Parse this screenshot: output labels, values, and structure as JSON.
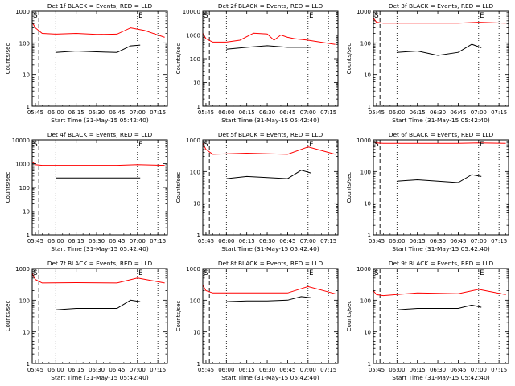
{
  "page": {
    "xlabel": "Start Time (31-May-15 05:42:40)",
    "ylabel": "Counts/sec",
    "marker_s": "S",
    "marker_e": "E"
  },
  "chart_data": [
    {
      "type": "line",
      "title": "Det 1f BLACK = Events, RED = LLD",
      "xlabel": "Start Time (31-May-15 05:42:40)",
      "ylabel": "Counts/sec",
      "log_y": true,
      "ylim": [
        1,
        1000
      ],
      "xlim": [
        "05:42:40",
        "07:22:00"
      ],
      "x_ticks": [
        "05:45",
        "06:00",
        "06:15",
        "06:30",
        "06:45",
        "07:00",
        "07:15"
      ],
      "y_ticks": [
        1,
        10,
        100,
        1000
      ],
      "y_tick_labels": [
        "1",
        "10",
        "100",
        "1000"
      ],
      "markers": {
        "S": "05:45",
        "E": "07:00"
      },
      "series": [
        {
          "color": "#ff0000",
          "x": [
            "05:42:40",
            "05:45",
            "05:50",
            "06:00",
            "06:15",
            "06:30",
            "06:45",
            "06:55",
            "07:05",
            "07:20"
          ],
          "values": [
            450,
            300,
            200,
            190,
            200,
            185,
            190,
            300,
            250,
            150
          ]
        },
        {
          "color": "#000000",
          "x": [
            "06:00",
            "06:15",
            "06:30",
            "06:45",
            "06:55",
            "07:02"
          ],
          "values": [
            50,
            55,
            52,
            50,
            80,
            85
          ]
        }
      ]
    },
    {
      "type": "line",
      "title": "Det 2f BLACK = Events, RED = LLD",
      "xlabel": "Start Time (31-May-15 05:42:40)",
      "ylabel": "Counts/sec",
      "log_y": true,
      "ylim": [
        1,
        10000
      ],
      "xlim": [
        "05:42:40",
        "07:22:00"
      ],
      "x_ticks": [
        "05:45",
        "06:00",
        "06:15",
        "06:30",
        "06:45",
        "07:00",
        "07:15"
      ],
      "y_ticks": [
        1,
        10,
        100,
        1000,
        10000
      ],
      "y_tick_labels": [
        "1",
        "10",
        "100",
        "1000",
        "10000"
      ],
      "markers": {
        "S": "05:45",
        "E": "07:00"
      },
      "series": [
        {
          "color": "#ff0000",
          "x": [
            "05:42:40",
            "05:45",
            "05:50",
            "06:00",
            "06:10",
            "06:20",
            "06:30",
            "06:35",
            "06:40",
            "06:45",
            "06:50",
            "07:00",
            "07:20"
          ],
          "values": [
            1200,
            700,
            500,
            500,
            600,
            1200,
            1100,
            600,
            1000,
            800,
            700,
            600,
            400
          ]
        },
        {
          "color": "#000000",
          "x": [
            "06:00",
            "06:15",
            "06:30",
            "06:45",
            "07:02"
          ],
          "values": [
            250,
            300,
            350,
            300,
            300
          ]
        }
      ]
    },
    {
      "type": "line",
      "title": "Det 3f BLACK = Events, RED = LLD",
      "xlabel": "Start Time (31-May-15 05:42:40)",
      "ylabel": "Counts/sec",
      "log_y": true,
      "ylim": [
        1,
        1000
      ],
      "xlim": [
        "05:42:40",
        "07:22:00"
      ],
      "x_ticks": [
        "05:45",
        "06:00",
        "06:15",
        "06:30",
        "06:45",
        "07:00",
        "07:15"
      ],
      "y_ticks": [
        1,
        10,
        100,
        1000
      ],
      "y_tick_labels": [
        "1",
        "10",
        "100",
        "1000"
      ],
      "markers": {
        "S": "05:45",
        "E": "07:00"
      },
      "series": [
        {
          "color": "#ff0000",
          "x": [
            "05:42:40",
            "05:45",
            "05:50",
            "06:15",
            "06:45",
            "07:00",
            "07:20"
          ],
          "values": [
            600,
            450,
            420,
            420,
            420,
            450,
            420
          ]
        },
        {
          "color": "#000000",
          "x": [
            "06:00",
            "06:15",
            "06:30",
            "06:45",
            "06:55",
            "07:02"
          ],
          "values": [
            50,
            55,
            40,
            50,
            90,
            70
          ]
        }
      ]
    },
    {
      "type": "line",
      "title": "Det 4f BLACK = Events, RED = LLD",
      "xlabel": "Start Time (31-May-15 05:42:40)",
      "ylabel": "Counts/sec",
      "log_y": true,
      "ylim": [
        1,
        10000
      ],
      "xlim": [
        "05:42:40",
        "07:22:00"
      ],
      "x_ticks": [
        "05:45",
        "06:00",
        "06:15",
        "06:30",
        "06:45",
        "07:00",
        "07:15"
      ],
      "y_ticks": [
        1,
        10,
        100,
        1000,
        10000
      ],
      "y_tick_labels": [
        "1",
        "10",
        "100",
        "1000",
        "10000"
      ],
      "markers": {
        "S": "05:45",
        "E": "07:00"
      },
      "series": [
        {
          "color": "#ff0000",
          "x": [
            "05:42:40",
            "05:45",
            "05:50",
            "06:15",
            "06:45",
            "07:00",
            "07:20"
          ],
          "values": [
            1200,
            900,
            850,
            850,
            850,
            900,
            850
          ]
        },
        {
          "color": "#000000",
          "x": [
            "06:00",
            "06:15",
            "06:45",
            "07:02"
          ],
          "values": [
            250,
            250,
            250,
            250
          ]
        }
      ]
    },
    {
      "type": "line",
      "title": "Det 5f BLACK = Events, RED = LLD",
      "xlabel": "Start Time (31-May-15 05:42:40)",
      "ylabel": "Counts/sec",
      "log_y": true,
      "ylim": [
        1,
        1000
      ],
      "xlim": [
        "05:42:40",
        "07:22:00"
      ],
      "x_ticks": [
        "05:45",
        "06:00",
        "06:15",
        "06:30",
        "06:45",
        "07:00",
        "07:15"
      ],
      "y_ticks": [
        1,
        10,
        100,
        1000
      ],
      "y_tick_labels": [
        "1",
        "10",
        "100",
        "1000"
      ],
      "markers": {
        "S": "05:45",
        "E": "07:00"
      },
      "series": [
        {
          "color": "#ff0000",
          "x": [
            "05:42:40",
            "05:45",
            "05:50",
            "06:15",
            "06:45",
            "07:00",
            "07:20"
          ],
          "values": [
            800,
            500,
            350,
            380,
            350,
            600,
            350
          ]
        },
        {
          "color": "#000000",
          "x": [
            "06:00",
            "06:15",
            "06:30",
            "06:45",
            "06:55",
            "07:02"
          ],
          "values": [
            60,
            70,
            65,
            60,
            110,
            90
          ]
        }
      ]
    },
    {
      "type": "line",
      "title": "Det 6f BLACK = Events, RED = LLD",
      "xlabel": "Start Time (31-May-15 05:42:40)",
      "ylabel": "Counts/sec",
      "log_y": true,
      "ylim": [
        1,
        1000
      ],
      "xlim": [
        "05:42:40",
        "07:22:00"
      ],
      "x_ticks": [
        "05:45",
        "06:00",
        "06:15",
        "06:30",
        "06:45",
        "07:00",
        "07:15"
      ],
      "y_ticks": [
        1,
        10,
        100,
        1000
      ],
      "y_tick_labels": [
        "1",
        "10",
        "100",
        "1000"
      ],
      "markers": {
        "S": "05:45",
        "E": "07:00"
      },
      "series": [
        {
          "color": "#ff0000",
          "x": [
            "05:42:40",
            "05:45",
            "05:50",
            "06:15",
            "06:45",
            "07:00",
            "07:20"
          ],
          "values": [
            900,
            800,
            780,
            780,
            780,
            800,
            780
          ]
        },
        {
          "color": "#000000",
          "x": [
            "06:00",
            "06:15",
            "06:30",
            "06:45",
            "06:55",
            "07:02"
          ],
          "values": [
            50,
            55,
            50,
            45,
            80,
            70
          ]
        }
      ]
    },
    {
      "type": "line",
      "title": "Det 7f BLACK = Events, RED = LLD",
      "xlabel": "Start Time (31-May-15 05:42:40)",
      "ylabel": "Counts/sec",
      "log_y": true,
      "ylim": [
        1,
        1000
      ],
      "xlim": [
        "05:42:40",
        "07:22:00"
      ],
      "x_ticks": [
        "05:45",
        "06:00",
        "06:15",
        "06:30",
        "06:45",
        "07:00",
        "07:15"
      ],
      "y_ticks": [
        1,
        10,
        100,
        1000
      ],
      "y_tick_labels": [
        "1",
        "10",
        "100",
        "1000"
      ],
      "markers": {
        "S": "05:45",
        "E": "07:00"
      },
      "series": [
        {
          "color": "#ff0000",
          "x": [
            "05:42:40",
            "05:45",
            "05:50",
            "06:15",
            "06:45",
            "07:00",
            "07:20"
          ],
          "values": [
            700,
            450,
            350,
            360,
            350,
            500,
            350
          ]
        },
        {
          "color": "#000000",
          "x": [
            "06:00",
            "06:15",
            "06:30",
            "06:45",
            "06:55",
            "07:02"
          ],
          "values": [
            50,
            55,
            55,
            55,
            100,
            90
          ]
        }
      ]
    },
    {
      "type": "line",
      "title": "Det 8f BLACK = Events, RED = LLD",
      "xlabel": "Start Time (31-May-15 05:42:40)",
      "ylabel": "Counts/sec",
      "log_y": true,
      "ylim": [
        1,
        1000
      ],
      "xlim": [
        "05:42:40",
        "07:22:00"
      ],
      "x_ticks": [
        "05:45",
        "06:00",
        "06:15",
        "06:30",
        "06:45",
        "07:00",
        "07:15"
      ],
      "y_ticks": [
        1,
        10,
        100,
        1000
      ],
      "y_tick_labels": [
        "1",
        "10",
        "100",
        "1000"
      ],
      "markers": {
        "S": "05:45",
        "E": "07:00"
      },
      "series": [
        {
          "color": "#ff0000",
          "x": [
            "05:42:40",
            "05:45",
            "05:50",
            "06:15",
            "06:45",
            "07:00",
            "07:20"
          ],
          "values": [
            300,
            200,
            170,
            170,
            170,
            270,
            160
          ]
        },
        {
          "color": "#000000",
          "x": [
            "06:00",
            "06:15",
            "06:30",
            "06:45",
            "06:55",
            "07:02"
          ],
          "values": [
            90,
            95,
            95,
            100,
            130,
            120
          ]
        }
      ]
    },
    {
      "type": "line",
      "title": "Det 9f BLACK = Events, RED = LLD",
      "xlabel": "Start Time (31-May-15 05:42:40)",
      "ylabel": "Counts/sec",
      "log_y": true,
      "ylim": [
        1,
        1000
      ],
      "xlim": [
        "05:42:40",
        "07:22:00"
      ],
      "x_ticks": [
        "05:45",
        "06:00",
        "06:15",
        "06:30",
        "06:45",
        "07:00",
        "07:15"
      ],
      "y_ticks": [
        1,
        10,
        100,
        1000
      ],
      "y_tick_labels": [
        "1",
        "10",
        "100",
        "1000"
      ],
      "markers": {
        "S": "05:45",
        "E": "07:00"
      },
      "series": [
        {
          "color": "#ff0000",
          "x": [
            "05:42:40",
            "05:45",
            "05:50",
            "06:15",
            "06:45",
            "07:00",
            "07:20"
          ],
          "values": [
            200,
            150,
            140,
            170,
            160,
            220,
            150
          ]
        },
        {
          "color": "#000000",
          "x": [
            "06:00",
            "06:15",
            "06:30",
            "06:45",
            "06:55",
            "07:02"
          ],
          "values": [
            50,
            55,
            55,
            55,
            70,
            60
          ]
        }
      ]
    }
  ]
}
